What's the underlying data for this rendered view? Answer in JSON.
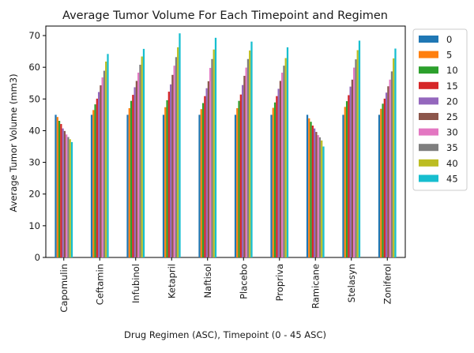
{
  "chart_data": {
    "type": "bar",
    "title": "Average Tumor Volume For Each Timepoint and Regimen",
    "xlabel": "Drug Regimen (ASC), Timepoint (0 - 45 ASC)",
    "ylabel": "Average Tumor Volume (mm3)",
    "ylim": [
      0,
      73
    ],
    "yticks": [
      0,
      10,
      20,
      30,
      40,
      50,
      60,
      70
    ],
    "grid": false,
    "legend_position": "outside-right",
    "categories": [
      "Capomulin",
      "Ceftamin",
      "Infubinol",
      "Ketapril",
      "Naftisol",
      "Placebo",
      "Propriva",
      "Ramicane",
      "Stelasyn",
      "Zoniferol"
    ],
    "series": [
      {
        "name": "0",
        "color": "#1f77b4",
        "values": [
          45.0,
          45.0,
          45.0,
          45.0,
          45.0,
          45.0,
          45.0,
          45.0,
          45.0,
          45.0
        ]
      },
      {
        "name": "5",
        "color": "#ff7f0e",
        "values": [
          44.3,
          46.5,
          47.1,
          47.4,
          46.8,
          47.1,
          47.2,
          43.9,
          47.5,
          46.9
        ]
      },
      {
        "name": "10",
        "color": "#2ca02c",
        "values": [
          43.1,
          48.3,
          49.4,
          49.6,
          48.7,
          49.4,
          48.9,
          42.8,
          49.3,
          48.5
        ]
      },
      {
        "name": "15",
        "color": "#d62728",
        "values": [
          42.1,
          50.1,
          51.3,
          52.3,
          50.9,
          51.4,
          50.9,
          41.6,
          51.2,
          50.1
        ]
      },
      {
        "name": "20",
        "color": "#9467bd",
        "values": [
          40.7,
          52.2,
          53.7,
          54.6,
          53.4,
          54.4,
          53.2,
          40.7,
          53.9,
          52.0
        ]
      },
      {
        "name": "25",
        "color": "#8c564b",
        "values": [
          39.9,
          54.3,
          55.7,
          57.6,
          55.6,
          57.3,
          55.7,
          39.6,
          56.1,
          54.0
        ]
      },
      {
        "name": "30",
        "color": "#e377c2",
        "values": [
          38.8,
          56.8,
          58.3,
          60.5,
          59.8,
          59.9,
          58.3,
          38.6,
          59.9,
          56.1
        ]
      },
      {
        "name": "35",
        "color": "#7f7f7f",
        "values": [
          38.0,
          58.9,
          60.8,
          63.2,
          62.6,
          62.6,
          60.5,
          37.9,
          62.5,
          58.7
        ]
      },
      {
        "name": "40",
        "color": "#bcbd22",
        "values": [
          37.3,
          61.8,
          63.4,
          66.3,
          65.6,
          65.3,
          62.9,
          36.9,
          65.4,
          62.8
        ]
      },
      {
        "name": "45",
        "color": "#17becf",
        "values": [
          36.4,
          64.2,
          65.8,
          70.7,
          69.3,
          68.1,
          66.3,
          35.0,
          68.4,
          65.9
        ]
      }
    ]
  }
}
